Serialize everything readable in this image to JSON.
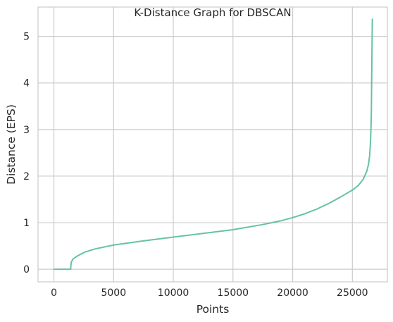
{
  "chart_data": {
    "type": "line",
    "title": "K-Distance Graph for DBSCAN",
    "xlabel": "Points",
    "ylabel": "Distance (EPS)",
    "xlim": [
      -1330,
      27930
    ],
    "ylim": [
      -0.27,
      5.63
    ],
    "xticks": [
      0,
      5000,
      10000,
      15000,
      20000,
      25000
    ],
    "yticks": [
      0,
      1,
      2,
      3,
      4,
      5
    ],
    "grid": true,
    "legend": "none",
    "series_color": "#66c2a5",
    "series": [
      {
        "x": [
          0,
          1400,
          1450,
          1600,
          2000,
          2600,
          3500,
          5000,
          7500,
          10000,
          12500,
          15000,
          17500,
          19000,
          20000,
          21000,
          22000,
          23000,
          24000,
          25000,
          25500,
          25900,
          26200,
          26350,
          26450,
          26520,
          26560,
          26590,
          26610,
          26630,
          26650,
          26670
        ],
        "y": [
          0,
          0,
          0.15,
          0.22,
          0.29,
          0.37,
          0.44,
          0.52,
          0.61,
          0.69,
          0.77,
          0.85,
          0.96,
          1.04,
          1.11,
          1.19,
          1.29,
          1.41,
          1.55,
          1.7,
          1.8,
          1.93,
          2.1,
          2.25,
          2.45,
          2.75,
          3.05,
          3.4,
          3.9,
          4.4,
          4.9,
          5.37
        ]
      }
    ]
  }
}
